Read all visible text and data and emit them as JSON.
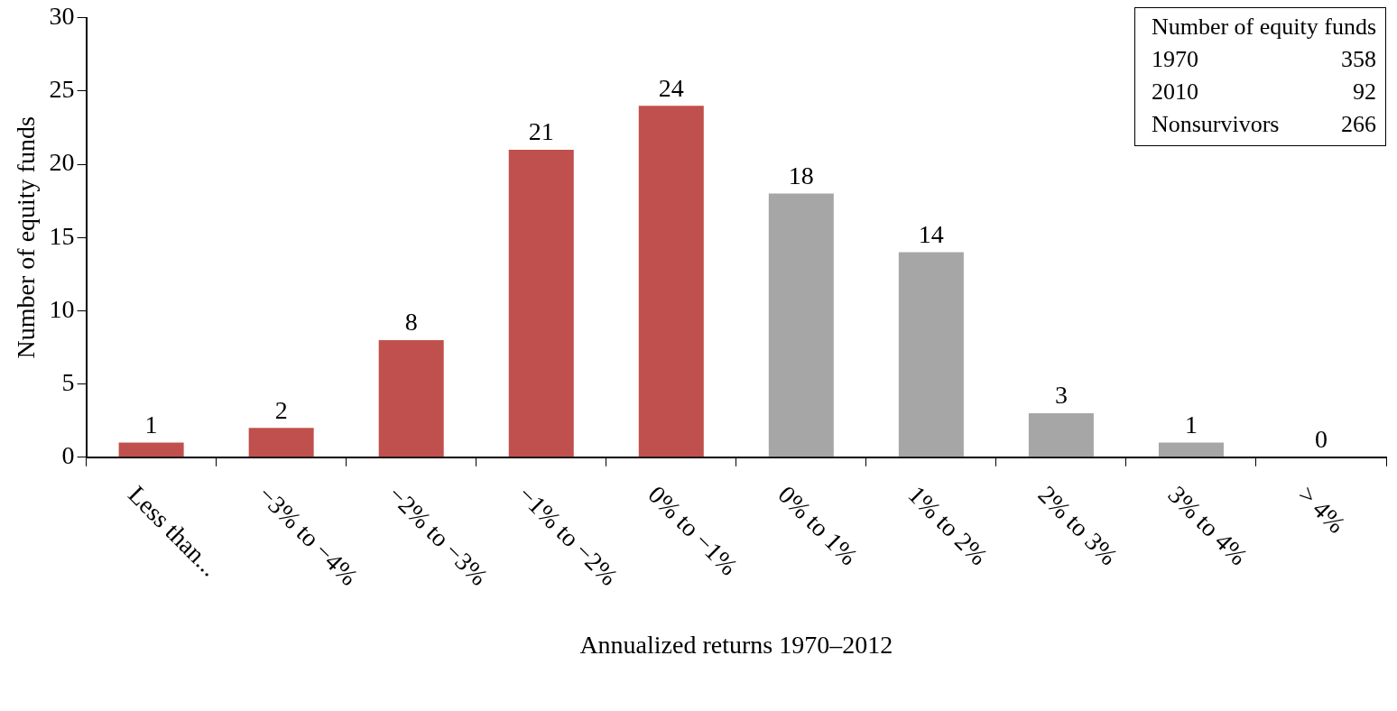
{
  "chart_data": {
    "type": "bar",
    "xlabel": "Annualized returns 1970–2012",
    "ylabel": "Number of equity funds",
    "categories": [
      "Less than...",
      "−3% to −4%",
      "−2% to −3%",
      "−1% to −2%",
      "0% to −1%",
      "0% to 1%",
      "1% to 2%",
      "2% to 3%",
      "3% to 4%",
      "> 4%"
    ],
    "values": [
      1,
      2,
      8,
      21,
      24,
      18,
      14,
      3,
      1,
      0
    ],
    "colors": [
      "#c0504d",
      "#c0504d",
      "#c0504d",
      "#c0504d",
      "#c0504d",
      "#a6a6a6",
      "#a6a6a6",
      "#a6a6a6",
      "#a6a6a6",
      "#a6a6a6"
    ],
    "ylim": [
      0,
      30
    ],
    "yticks": [
      0,
      5,
      10,
      15,
      20,
      25,
      30
    ],
    "grid": false,
    "legend": false,
    "data_labels": true,
    "annotations": [
      "Number of equity funds",
      "1970",
      "358",
      "2010",
      "92",
      "Nonsurvivors",
      "266"
    ]
  }
}
